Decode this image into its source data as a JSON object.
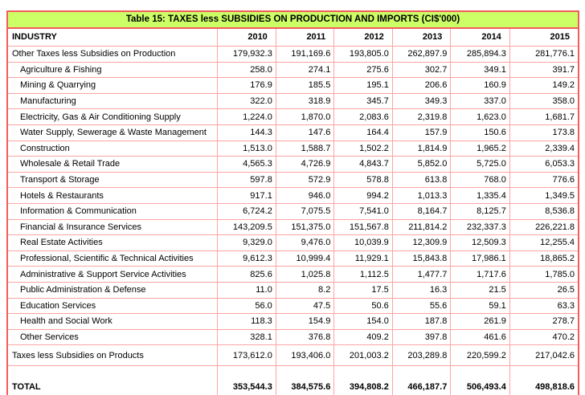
{
  "table": {
    "title": "Table 15: TAXES less SUBSIDIES ON PRODUCTION AND IMPORTS (CI$'000)",
    "header": {
      "industry": "INDUSTRY",
      "years": [
        "2010",
        "2011",
        "2012",
        "2013",
        "2014",
        "2015"
      ]
    },
    "rows": [
      {
        "label": "Other Taxes less Subsidies on Production",
        "indent": false,
        "variant": "normal",
        "values": [
          "179,932.3",
          "191,169.6",
          "193,805.0",
          "262,897.9",
          "285,894.3",
          "281,776.1"
        ]
      },
      {
        "label": "Agriculture & Fishing",
        "indent": true,
        "variant": "normal",
        "values": [
          "258.0",
          "274.1",
          "275.6",
          "302.7",
          "349.1",
          "391.7"
        ]
      },
      {
        "label": "Mining & Quarrying",
        "indent": true,
        "variant": "normal",
        "values": [
          "176.9",
          "185.5",
          "195.1",
          "206.6",
          "160.9",
          "149.2"
        ]
      },
      {
        "label": "Manufacturing",
        "indent": true,
        "variant": "normal",
        "values": [
          "322.0",
          "318.9",
          "345.7",
          "349.3",
          "337.0",
          "358.0"
        ]
      },
      {
        "label": "Electricity, Gas & Air Conditioning Supply",
        "indent": true,
        "variant": "normal",
        "values": [
          "1,224.0",
          "1,870.0",
          "2,083.6",
          "2,319.8",
          "1,623.0",
          "1,681.7"
        ]
      },
      {
        "label": "Water Supply, Sewerage & Waste Management",
        "indent": true,
        "variant": "normal",
        "values": [
          "144.3",
          "147.6",
          "164.4",
          "157.9",
          "150.6",
          "173.8"
        ]
      },
      {
        "label": "Construction",
        "indent": true,
        "variant": "normal",
        "values": [
          "1,513.0",
          "1,588.7",
          "1,502.2",
          "1,814.9",
          "1,965.2",
          "2,339.4"
        ]
      },
      {
        "label": "Wholesale & Retail Trade",
        "indent": true,
        "variant": "normal",
        "values": [
          "4,565.3",
          "4,726.9",
          "4,843.7",
          "5,852.0",
          "5,725.0",
          "6,053.3"
        ]
      },
      {
        "label": "Transport & Storage",
        "indent": true,
        "variant": "normal",
        "values": [
          "597.8",
          "572.9",
          "578.8",
          "613.8",
          "768.0",
          "776.6"
        ]
      },
      {
        "label": "Hotels & Restaurants",
        "indent": true,
        "variant": "normal",
        "values": [
          "917.1",
          "946.0",
          "994.2",
          "1,013.3",
          "1,335.4",
          "1,349.5"
        ]
      },
      {
        "label": "Information & Communication",
        "indent": true,
        "variant": "normal",
        "values": [
          "6,724.2",
          "7,075.5",
          "7,541.0",
          "8,164.7",
          "8,125.7",
          "8,536.8"
        ]
      },
      {
        "label": "Financial & Insurance Services",
        "indent": true,
        "variant": "normal",
        "values": [
          "143,209.5",
          "151,375.0",
          "151,567.8",
          "211,814.2",
          "232,337.3",
          "226,221.8"
        ]
      },
      {
        "label": "Real Estate Activities",
        "indent": true,
        "variant": "normal",
        "values": [
          "9,329.0",
          "9,476.0",
          "10,039.9",
          "12,309.9",
          "12,509.3",
          "12,255.4"
        ]
      },
      {
        "label": "Professional, Scientific & Technical Activities",
        "indent": true,
        "variant": "normal",
        "values": [
          "9,612.3",
          "10,999.4",
          "11,929.1",
          "15,843.8",
          "17,986.1",
          "18,865.2"
        ]
      },
      {
        "label": "Administrative & Support Service Activities",
        "indent": true,
        "variant": "normal",
        "values": [
          "825.6",
          "1,025.8",
          "1,112.5",
          "1,477.7",
          "1,717.6",
          "1,785.0"
        ]
      },
      {
        "label": "Public Administration & Defense",
        "indent": true,
        "variant": "normal",
        "values": [
          "11.0",
          "8.2",
          "17.5",
          "16.3",
          "21.5",
          "26.5"
        ]
      },
      {
        "label": "Education Services",
        "indent": true,
        "variant": "normal",
        "values": [
          "56.0",
          "47.5",
          "50.6",
          "55.6",
          "59.1",
          "63.3"
        ]
      },
      {
        "label": "Health and Social Work",
        "indent": true,
        "variant": "normal",
        "values": [
          "118.3",
          "154.9",
          "154.0",
          "187.8",
          "261.9",
          "278.7"
        ]
      },
      {
        "label": "Other Services",
        "indent": true,
        "variant": "normal",
        "values": [
          "328.1",
          "376.8",
          "409.2",
          "397.8",
          "461.6",
          "470.2"
        ]
      },
      {
        "label": "Taxes less Subsidies on Products",
        "indent": false,
        "variant": "products",
        "values": [
          "173,612.0",
          "193,406.0",
          "201,003.2",
          "203,289.8",
          "220,599.2",
          "217,042.6"
        ]
      },
      {
        "label": "TOTAL",
        "indent": false,
        "variant": "total",
        "values": [
          "353,544.3",
          "384,575.6",
          "394,808.2",
          "466,187.7",
          "506,493.4",
          "498,818.6"
        ]
      }
    ],
    "colors": {
      "title_background": "#ccff66",
      "outer_border": "#f25c5c",
      "grid_border": "#ffa3a3",
      "text": "#000000"
    }
  }
}
